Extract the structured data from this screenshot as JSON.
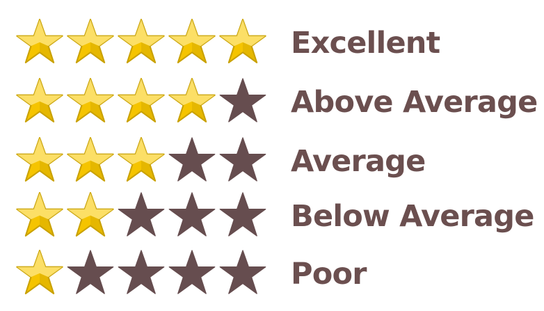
{
  "rating_legend": {
    "max_stars": 5,
    "colors": {
      "filled_star": "#f5c400",
      "filled_star_highlight": "#fde888",
      "filled_star_edge": "#c9a100",
      "empty_star": "#664d4f",
      "label": "#6b4f4f"
    },
    "icon": "star-icon",
    "rows": [
      {
        "label": "Excellent",
        "filled": 5
      },
      {
        "label": "Above Average",
        "filled": 4
      },
      {
        "label": "Average",
        "filled": 3
      },
      {
        "label": "Below Average",
        "filled": 2
      },
      {
        "label": "Poor",
        "filled": 1
      }
    ]
  }
}
